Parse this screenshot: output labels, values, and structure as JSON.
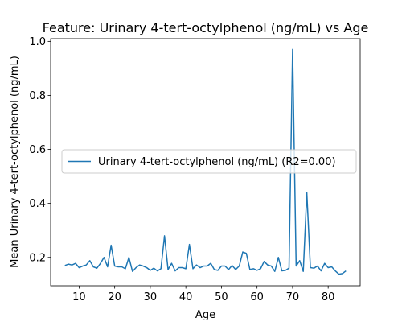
{
  "chart_data": {
    "type": "line",
    "title": "Feature: Urinary 4-tert-octylphenol (ng/mL) vs Age",
    "xlabel": "Age",
    "ylabel": "Mean Urinary 4-tert-octylphenol (ng/mL)",
    "xlim": [
      2,
      89
    ],
    "ylim": [
      0.095,
      1.01
    ],
    "xticks": [
      10,
      20,
      30,
      40,
      50,
      60,
      70,
      80
    ],
    "yticks": [
      0.2,
      0.4,
      0.6,
      0.8,
      1.0
    ],
    "xtick_labels": [
      "10",
      "20",
      "30",
      "40",
      "50",
      "60",
      "70",
      "80"
    ],
    "ytick_labels": [
      "0.2",
      "0.4",
      "0.6",
      "0.8",
      "1.0"
    ],
    "grid": false,
    "legend": {
      "position": "center-left",
      "entries": [
        "Urinary 4-tert-octylphenol (ng/mL) (R2=0.00)"
      ]
    },
    "series": [
      {
        "name": "Urinary 4-tert-octylphenol (ng/mL) (R2=0.00)",
        "color": "#1f77b4",
        "x": [
          6,
          7,
          8,
          9,
          10,
          11,
          12,
          13,
          14,
          15,
          16,
          17,
          18,
          19,
          20,
          21,
          22,
          23,
          24,
          25,
          26,
          27,
          28,
          29,
          30,
          31,
          32,
          33,
          34,
          35,
          36,
          37,
          38,
          39,
          40,
          41,
          42,
          43,
          44,
          45,
          46,
          47,
          48,
          49,
          50,
          51,
          52,
          53,
          54,
          55,
          56,
          57,
          58,
          59,
          60,
          61,
          62,
          63,
          64,
          65,
          66,
          67,
          68,
          69,
          70,
          71,
          72,
          73,
          74,
          75,
          76,
          77,
          78,
          79,
          80,
          81,
          82,
          83,
          84,
          85
        ],
        "y": [
          0.17,
          0.175,
          0.172,
          0.178,
          0.162,
          0.168,
          0.172,
          0.188,
          0.165,
          0.16,
          0.178,
          0.2,
          0.165,
          0.245,
          0.168,
          0.165,
          0.165,
          0.158,
          0.2,
          0.148,
          0.162,
          0.172,
          0.168,
          0.162,
          0.152,
          0.16,
          0.15,
          0.158,
          0.28,
          0.155,
          0.178,
          0.15,
          0.162,
          0.162,
          0.158,
          0.248,
          0.158,
          0.172,
          0.162,
          0.168,
          0.168,
          0.178,
          0.155,
          0.152,
          0.168,
          0.168,
          0.155,
          0.17,
          0.155,
          0.168,
          0.22,
          0.215,
          0.155,
          0.158,
          0.152,
          0.158,
          0.185,
          0.172,
          0.168,
          0.148,
          0.2,
          0.15,
          0.152,
          0.16,
          0.97,
          0.168,
          0.188,
          0.148,
          0.44,
          0.162,
          0.16,
          0.168,
          0.15,
          0.178,
          0.162,
          0.165,
          0.15,
          0.138,
          0.14,
          0.15
        ]
      }
    ]
  }
}
